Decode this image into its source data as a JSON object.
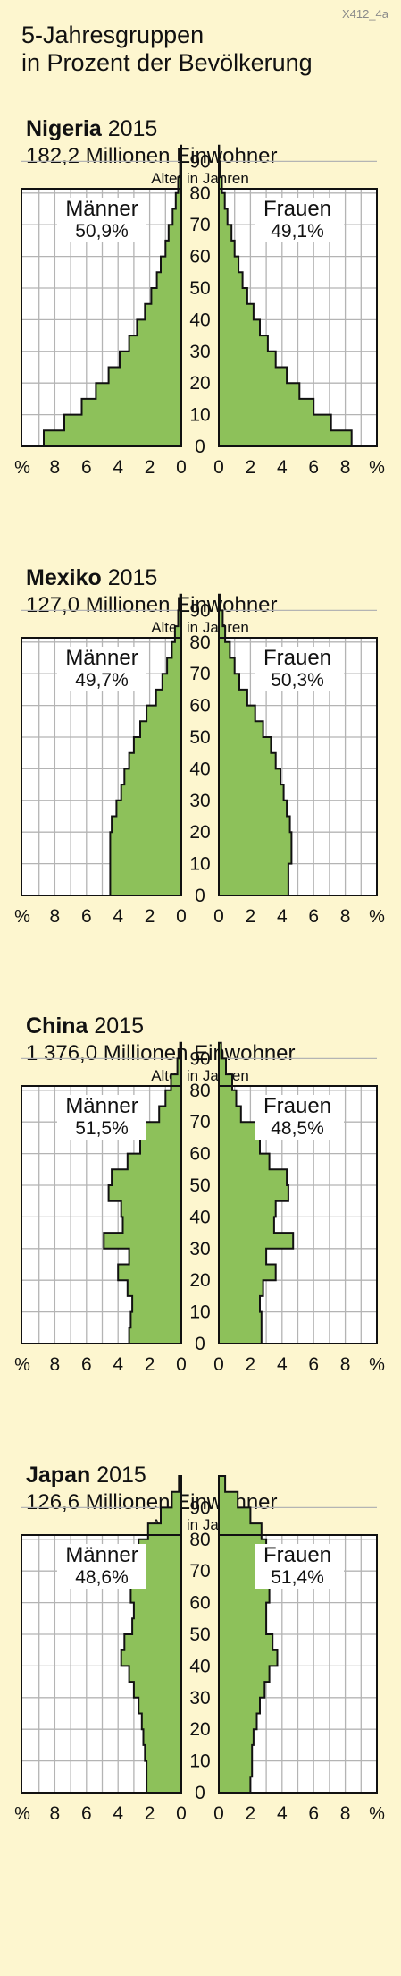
{
  "page": {
    "title_line1": "5-Jahresgruppen",
    "title_line2": "in Prozent der Bevölkerung",
    "code": "X412_4a"
  },
  "common": {
    "axis_label": "Alter in Jahren",
    "percent_sign": "%",
    "age_ticks": [
      "0",
      "10",
      "20",
      "30",
      "40",
      "50",
      "60",
      "70",
      "80",
      "90"
    ],
    "percent_ticks": [
      "8",
      "6",
      "4",
      "2",
      "0"
    ],
    "bar_color": "#8dc15a",
    "grid_color": "#b4b4b4"
  },
  "chart_data": [
    {
      "type": "bar",
      "country": "Nigeria",
      "year": "2015",
      "population": "182,2 Millionen Einwohner",
      "male_label": "Männer",
      "male_share": "50,9%",
      "female_label": "Frauen",
      "female_share": "49,1%",
      "age_groups": [
        "0-4",
        "5-9",
        "10-14",
        "15-19",
        "20-24",
        "25-29",
        "30-34",
        "35-39",
        "40-44",
        "45-49",
        "50-54",
        "55-59",
        "60-64",
        "65-69",
        "70-74",
        "75-79",
        "80-84",
        "85-89",
        "90-94"
      ],
      "xlim": [
        0,
        10
      ],
      "male": [
        8.7,
        7.4,
        6.3,
        5.4,
        4.6,
        3.9,
        3.3,
        2.8,
        2.3,
        1.9,
        1.55,
        1.3,
        1.0,
        0.8,
        0.55,
        0.35,
        0.2,
        0.08,
        0.02
      ],
      "female": [
        8.4,
        7.1,
        6.0,
        5.1,
        4.3,
        3.6,
        3.1,
        2.6,
        2.2,
        1.8,
        1.5,
        1.25,
        1.0,
        0.8,
        0.55,
        0.38,
        0.2,
        0.08,
        0.02
      ]
    },
    {
      "type": "bar",
      "country": "Mexiko",
      "year": "2015",
      "population": "127,0 Millionen Einwohner",
      "male_label": "Männer",
      "male_share": "49,7%",
      "female_label": "Frauen",
      "female_share": "50,3%",
      "age_groups": [
        "0-4",
        "5-9",
        "10-14",
        "15-19",
        "20-24",
        "25-29",
        "30-34",
        "35-39",
        "40-44",
        "45-49",
        "50-54",
        "55-59",
        "60-64",
        "65-69",
        "70-74",
        "75-79",
        "80-84",
        "85-89",
        "90-94"
      ],
      "xlim": [
        0,
        10
      ],
      "male": [
        4.5,
        4.5,
        4.5,
        4.5,
        4.4,
        4.1,
        3.8,
        3.6,
        3.3,
        3.0,
        2.6,
        2.2,
        1.6,
        1.2,
        0.9,
        0.6,
        0.4,
        0.2,
        0.08
      ],
      "female": [
        4.4,
        4.4,
        4.6,
        4.6,
        4.5,
        4.3,
        4.1,
        3.9,
        3.6,
        3.3,
        2.8,
        2.3,
        1.8,
        1.3,
        1.0,
        0.7,
        0.4,
        0.25,
        0.08
      ]
    },
    {
      "type": "bar",
      "country": "China",
      "year": "2015",
      "population": "1 376,0 Millionen Einwohner",
      "male_label": "Männer",
      "male_share": "51,5%",
      "female_label": "Frauen",
      "female_share": "48,5%",
      "age_groups": [
        "0-4",
        "5-9",
        "10-14",
        "15-19",
        "20-24",
        "25-29",
        "30-34",
        "35-39",
        "40-44",
        "45-49",
        "50-54",
        "55-59",
        "60-64",
        "65-69",
        "70-74",
        "75-79",
        "80-84",
        "85-89",
        "90-94"
      ],
      "xlim": [
        0,
        10
      ],
      "male": [
        3.3,
        3.2,
        3.1,
        3.4,
        4.0,
        3.3,
        4.9,
        3.7,
        3.8,
        4.6,
        4.4,
        3.4,
        2.6,
        2.5,
        1.4,
        1.0,
        0.65,
        0.25,
        0.08
      ],
      "female": [
        2.7,
        2.7,
        2.6,
        2.8,
        3.6,
        3.0,
        4.7,
        3.5,
        3.6,
        4.4,
        4.3,
        3.2,
        2.6,
        2.5,
        1.4,
        1.1,
        0.85,
        0.45,
        0.15
      ]
    },
    {
      "type": "bar",
      "country": "Japan",
      "year": "2015",
      "population": "126,6 Millionen Einwohner",
      "male_label": "Männer",
      "male_share": "48,6%",
      "female_label": "Frauen",
      "female_share": "51,4%",
      "age_groups": [
        "0-4",
        "5-9",
        "10-14",
        "15-19",
        "20-24",
        "25-29",
        "30-34",
        "35-39",
        "40-44",
        "45-49",
        "50-54",
        "55-59",
        "60-64",
        "65-69",
        "70-74",
        "75-79",
        "80-84",
        "85-89",
        "90-94",
        "95-99"
      ],
      "xlim": [
        0,
        10
      ],
      "male": [
        2.2,
        2.2,
        2.3,
        2.4,
        2.5,
        2.7,
        3.0,
        3.3,
        3.8,
        3.6,
        3.1,
        3.0,
        3.2,
        3.8,
        3.4,
        2.7,
        2.1,
        1.3,
        0.6,
        0.15
      ],
      "female": [
        2.0,
        2.1,
        2.1,
        2.2,
        2.4,
        2.6,
        2.9,
        3.2,
        3.7,
        3.4,
        3.0,
        3.0,
        3.2,
        3.8,
        3.5,
        3.0,
        2.7,
        2.0,
        1.2,
        0.4
      ]
    }
  ]
}
